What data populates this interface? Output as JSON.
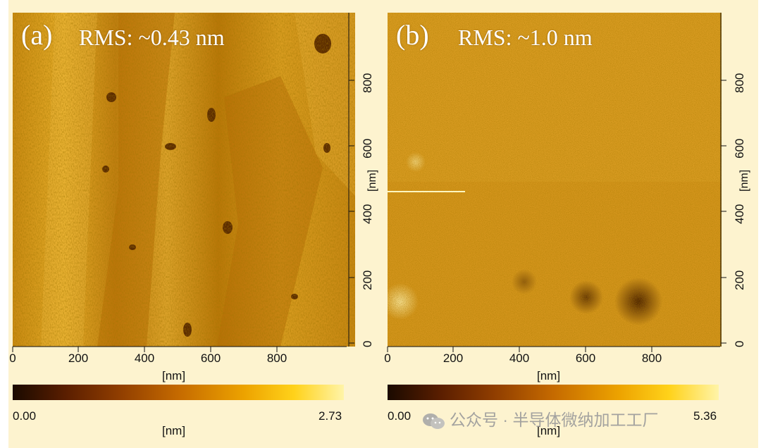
{
  "colors": {
    "panel_bg": "#fdf3cf",
    "colormap": [
      "#1a0a00",
      "#5a1e00",
      "#8f3d00",
      "#c56a00",
      "#eda300",
      "#ffd21a",
      "#fff4a8"
    ]
  },
  "panels": [
    {
      "label": "(a)",
      "rms": "RMS: ~0.43 nm",
      "x_ticks": [
        "0",
        "200",
        "400",
        "600",
        "800"
      ],
      "y_ticks": [
        "0",
        "200",
        "400",
        "600",
        "800"
      ],
      "x_unit": "[nm]",
      "y_unit": "[nm]",
      "colorbar": {
        "min": "0.00",
        "max": "2.73",
        "unit": "[nm]"
      }
    },
    {
      "label": "(b)",
      "rms": "RMS: ~1.0 nm",
      "x_ticks": [
        "0",
        "200",
        "400",
        "600",
        "800"
      ],
      "y_ticks": [
        "0",
        "200",
        "400",
        "600",
        "800"
      ],
      "x_unit": "[nm]",
      "y_unit": "[nm]",
      "colorbar": {
        "min": "0.00",
        "max": "5.36",
        "unit": "[nm]"
      }
    }
  ],
  "watermark": {
    "text": "公众号 · 半导体微纳加工工厂",
    "icon": "wechat-icon"
  }
}
